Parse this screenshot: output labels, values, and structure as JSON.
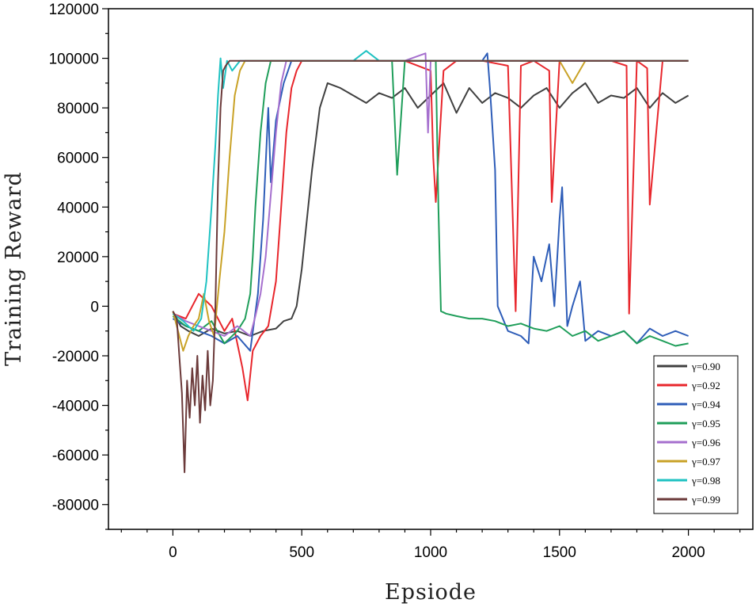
{
  "chart_data": {
    "type": "line",
    "title": "",
    "xlabel": "Epsiode",
    "ylabel": "Training Reward",
    "xlim": [
      -250,
      2250
    ],
    "ylim": [
      -90000,
      120000
    ],
    "xticks": [
      0,
      500,
      1000,
      1500,
      2000
    ],
    "yticks": [
      -80000,
      -60000,
      -40000,
      -20000,
      0,
      20000,
      40000,
      60000,
      80000,
      100000,
      120000
    ],
    "grid": false,
    "legend_position": "bottom-right",
    "series": [
      {
        "name": "γ=0.90",
        "color": "#404040",
        "x": [
          0,
          30,
          60,
          100,
          150,
          200,
          250,
          300,
          350,
          400,
          430,
          460,
          480,
          500,
          520,
          540,
          570,
          600,
          650,
          700,
          750,
          800,
          850,
          900,
          950,
          1000,
          1050,
          1100,
          1150,
          1200,
          1250,
          1300,
          1350,
          1400,
          1450,
          1500,
          1550,
          1600,
          1650,
          1700,
          1750,
          1800,
          1850,
          1900,
          1950,
          2000
        ],
        "y": [
          -2000,
          -8000,
          -10000,
          -12000,
          -9000,
          -11000,
          -10000,
          -12000,
          -10000,
          -9000,
          -6000,
          -5000,
          0,
          15000,
          35000,
          55000,
          80000,
          90000,
          88000,
          85000,
          82000,
          86000,
          84000,
          88000,
          80000,
          85000,
          90000,
          78000,
          88000,
          82000,
          86000,
          84000,
          80000,
          85000,
          88000,
          80000,
          86000,
          90000,
          82000,
          85000,
          84000,
          88000,
          80000,
          86000,
          82000,
          85000
        ]
      },
      {
        "name": "γ=0.92",
        "color": "#e8262c",
        "x": [
          0,
          50,
          100,
          150,
          200,
          230,
          250,
          270,
          290,
          310,
          340,
          370,
          400,
          420,
          440,
          460,
          480,
          500,
          550,
          600,
          700,
          800,
          900,
          1000,
          1010,
          1020,
          1050,
          1100,
          1200,
          1300,
          1330,
          1350,
          1400,
          1460,
          1470,
          1500,
          1600,
          1700,
          1760,
          1770,
          1800,
          1840,
          1850,
          1900,
          2000
        ],
        "y": [
          -3000,
          -5000,
          5000,
          0,
          -10000,
          -5000,
          -15000,
          -25000,
          -38000,
          -18000,
          -12000,
          -8000,
          10000,
          40000,
          70000,
          88000,
          95000,
          99000,
          99000,
          99000,
          99000,
          99000,
          99000,
          95000,
          60000,
          42000,
          95000,
          99000,
          99000,
          97000,
          -2000,
          97000,
          99000,
          95000,
          42000,
          99000,
          99000,
          99000,
          97000,
          -3000,
          99000,
          96000,
          41000,
          99000,
          99000
        ]
      },
      {
        "name": "γ=0.94",
        "color": "#2e5db8",
        "x": [
          0,
          50,
          100,
          150,
          200,
          250,
          300,
          330,
          350,
          370,
          380,
          400,
          430,
          460,
          500,
          600,
          700,
          800,
          900,
          1000,
          1100,
          1200,
          1220,
          1230,
          1250,
          1260,
          1280,
          1300,
          1350,
          1380,
          1400,
          1430,
          1460,
          1480,
          1500,
          1510,
          1530,
          1550,
          1580,
          1600,
          1650,
          1700,
          1750,
          1800,
          1850,
          1900,
          1950,
          2000
        ],
        "y": [
          -5000,
          -8000,
          -10000,
          -12000,
          -15000,
          -12000,
          -18000,
          5000,
          35000,
          80000,
          50000,
          75000,
          90000,
          99000,
          99000,
          99000,
          99000,
          99000,
          99000,
          99000,
          99000,
          99000,
          102000,
          88000,
          55000,
          0,
          -5000,
          -10000,
          -12000,
          -15000,
          20000,
          10000,
          25000,
          0,
          35000,
          48000,
          -8000,
          0,
          10000,
          -14000,
          -10000,
          -12000,
          -10000,
          -15000,
          -9000,
          -12000,
          -10000,
          -12000
        ]
      },
      {
        "name": "γ=0.95",
        "color": "#1f9e5a",
        "x": [
          0,
          50,
          100,
          150,
          200,
          250,
          280,
          300,
          310,
          320,
          330,
          340,
          360,
          380,
          400,
          450,
          500,
          550,
          600,
          700,
          800,
          850,
          870,
          900,
          1000,
          1020,
          1030,
          1040,
          1060,
          1100,
          1150,
          1200,
          1250,
          1300,
          1350,
          1400,
          1450,
          1500,
          1550,
          1600,
          1650,
          1700,
          1750,
          1800,
          1850,
          1900,
          1950,
          2000
        ],
        "y": [
          -4000,
          -8000,
          -10000,
          -6000,
          -15000,
          -10000,
          -5000,
          5000,
          20000,
          40000,
          55000,
          70000,
          90000,
          99000,
          99000,
          99000,
          99000,
          99000,
          99000,
          99000,
          99000,
          99000,
          53000,
          99000,
          99000,
          99000,
          40000,
          -2000,
          -3000,
          -4000,
          -5000,
          -5000,
          -6000,
          -8000,
          -7000,
          -9000,
          -10000,
          -8000,
          -12000,
          -10000,
          -14000,
          -12000,
          -10000,
          -15000,
          -12000,
          -14000,
          -16000,
          -15000
        ]
      },
      {
        "name": "γ=0.96",
        "color": "#a56fce",
        "x": [
          0,
          50,
          100,
          150,
          200,
          250,
          300,
          320,
          340,
          360,
          380,
          400,
          420,
          440,
          470,
          500,
          600,
          700,
          800,
          900,
          980,
          990,
          1000,
          1050,
          1100,
          1200,
          1300,
          1400,
          1500,
          1600,
          1700,
          1800,
          1900,
          2000
        ],
        "y": [
          -3000,
          -6000,
          -8000,
          -10000,
          -12000,
          -8000,
          -12000,
          -4000,
          5000,
          20000,
          45000,
          70000,
          90000,
          99000,
          99000,
          99000,
          99000,
          99000,
          99000,
          99000,
          102000,
          70000,
          99000,
          99000,
          99000,
          99000,
          99000,
          99000,
          99000,
          99000,
          99000,
          99000,
          99000,
          99000
        ]
      },
      {
        "name": "γ=0.97",
        "color": "#c9a227",
        "x": [
          0,
          20,
          40,
          60,
          80,
          100,
          120,
          140,
          160,
          180,
          200,
          220,
          240,
          260,
          280,
          300,
          400,
          500,
          600,
          700,
          800,
          900,
          1000,
          1100,
          1200,
          1300,
          1400,
          1500,
          1550,
          1600,
          1700,
          1800,
          1900,
          2000
        ],
        "y": [
          -2000,
          -10000,
          -18000,
          -12000,
          -8000,
          -5000,
          5000,
          -6000,
          -12000,
          10000,
          30000,
          60000,
          85000,
          95000,
          99000,
          99000,
          99000,
          99000,
          99000,
          99000,
          99000,
          99000,
          99000,
          99000,
          99000,
          99000,
          99000,
          99000,
          90000,
          99000,
          99000,
          99000,
          99000,
          99000
        ]
      },
      {
        "name": "γ=0.98",
        "color": "#1fc2c2",
        "x": [
          0,
          40,
          80,
          110,
          130,
          150,
          165,
          175,
          185,
          195,
          210,
          230,
          260,
          300,
          400,
          500,
          600,
          700,
          750,
          800,
          900,
          1000,
          1100,
          1200,
          1300,
          1400,
          1500,
          1600,
          1700,
          1800,
          1900,
          2000
        ],
        "y": [
          -3000,
          -6000,
          -10000,
          -5000,
          10000,
          40000,
          65000,
          85000,
          100000,
          88000,
          99000,
          95000,
          99000,
          99000,
          99000,
          99000,
          99000,
          99000,
          103000,
          99000,
          99000,
          99000,
          99000,
          99000,
          99000,
          99000,
          99000,
          99000,
          99000,
          99000,
          99000,
          99000
        ]
      },
      {
        "name": "γ=0.99",
        "color": "#6b3a3a",
        "x": [
          0,
          15,
          25,
          35,
          45,
          55,
          65,
          75,
          85,
          95,
          105,
          115,
          125,
          135,
          145,
          155,
          165,
          175,
          185,
          195,
          205,
          220,
          250,
          300,
          400,
          500,
          600,
          700,
          800,
          900,
          1000,
          1100,
          1200,
          1300,
          1400,
          1500,
          1600,
          1700,
          1800,
          1900,
          2000
        ],
        "y": [
          -2000,
          -5000,
          -20000,
          -35000,
          -67000,
          -30000,
          -45000,
          -25000,
          -40000,
          -20000,
          -47000,
          -28000,
          -42000,
          -18000,
          -40000,
          -30000,
          0,
          50000,
          80000,
          95000,
          97000,
          99000,
          99000,
          99000,
          99000,
          99000,
          99000,
          99000,
          99000,
          99000,
          99000,
          99000,
          99000,
          99000,
          99000,
          99000,
          99000,
          99000,
          99000,
          99000,
          99000
        ]
      }
    ]
  }
}
